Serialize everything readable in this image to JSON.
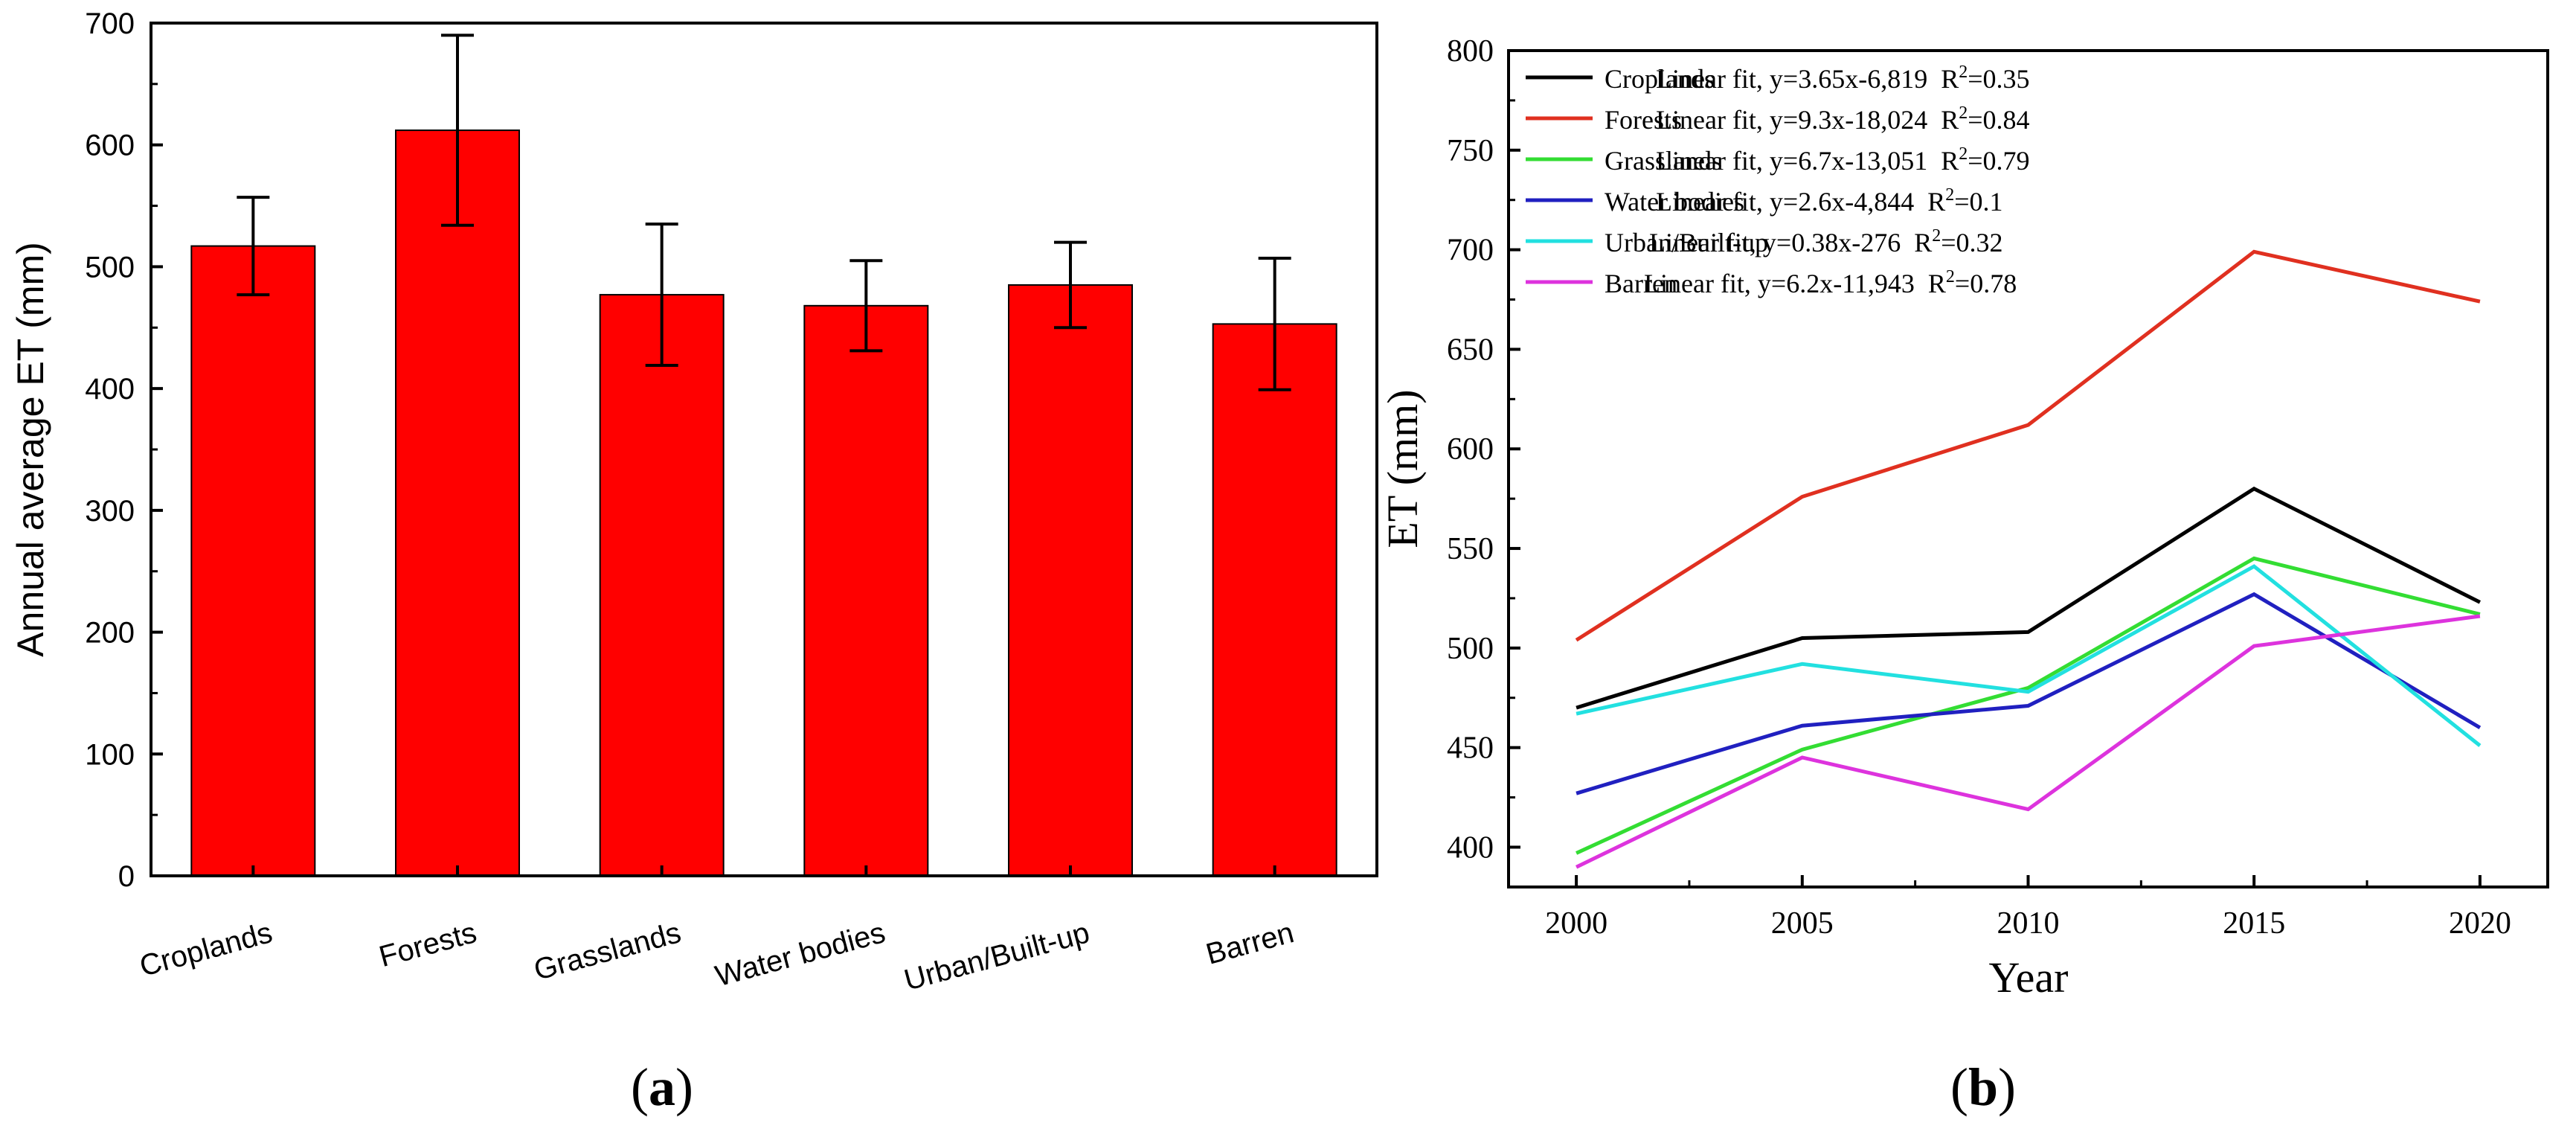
{
  "panels": {
    "a": {
      "open": "(",
      "letter": "a",
      "close": ")"
    },
    "b": {
      "open": "(",
      "letter": "b",
      "close": ")"
    }
  },
  "chart_data": [
    {
      "type": "bar",
      "title": "",
      "xlabel": "",
      "ylabel": "Annual average ET (mm)",
      "ylim": [
        0,
        700
      ],
      "yticks": [
        0,
        100,
        200,
        300,
        400,
        500,
        600,
        700
      ],
      "categories": [
        "Croplands",
        "Forests",
        "Grasslands",
        "Water bodies",
        "Urban/Built-up",
        "Barren"
      ],
      "values": [
        517,
        612,
        477,
        468,
        485,
        453
      ],
      "error": [
        40,
        78,
        58,
        37,
        35,
        54
      ],
      "bar_color": "#ff0000",
      "grid": false
    },
    {
      "type": "line",
      "title": "",
      "xlabel": "Year",
      "ylabel": "ET (mm)",
      "x": [
        2000,
        2005,
        2010,
        2015,
        2020
      ],
      "xlim": [
        1998.5,
        2021.5
      ],
      "ylim": [
        380,
        800
      ],
      "yticks": [
        400,
        450,
        500,
        550,
        600,
        650,
        700,
        750,
        800
      ],
      "grid": false,
      "legend": "top-left",
      "series": [
        {
          "name": "Croplands",
          "fit": "Linear fit, y=3.65x-6,819",
          "r2_prefix": "R",
          "r2_sup": "2",
          "r2_value": "=0.35",
          "color": "#000000",
          "values": [
            470,
            505,
            508,
            580,
            523
          ]
        },
        {
          "name": "Forests",
          "fit": "Linear fit, y=9.3x-18,024",
          "r2_prefix": "R",
          "r2_sup": "2",
          "r2_value": "=0.84",
          "color": "#e03020",
          "values": [
            504,
            576,
            612,
            699,
            674
          ]
        },
        {
          "name": "Grasslands",
          "fit": "Linear fit, y=6.7x-13,051",
          "r2_prefix": "R",
          "r2_sup": "2",
          "r2_value": "=0.79",
          "color": "#33dd33",
          "values": [
            397,
            449,
            480,
            545,
            517
          ]
        },
        {
          "name": "Water bodies",
          "fit": "Linear fit, y=2.6x-4,844",
          "r2_prefix": "R",
          "r2_sup": "2",
          "r2_value": "=0.1",
          "color": "#2020c0",
          "values": [
            427,
            461,
            471,
            527,
            460
          ]
        },
        {
          "name": "Urban/Built-up",
          "fit": "Linear fit, y=0.38x-276",
          "r2_prefix": "R",
          "r2_sup": "2",
          "r2_value": "=0.32",
          "color": "#22e0e0",
          "values": [
            467,
            492,
            478,
            541,
            451
          ]
        },
        {
          "name": "Barren",
          "fit": "Linear fit, y=6.2x-11,943",
          "r2_prefix": "R",
          "r2_sup": "2",
          "r2_value": "=0.78",
          "color": "#dd33dd",
          "values": [
            390,
            445,
            419,
            501,
            516
          ]
        }
      ]
    }
  ]
}
